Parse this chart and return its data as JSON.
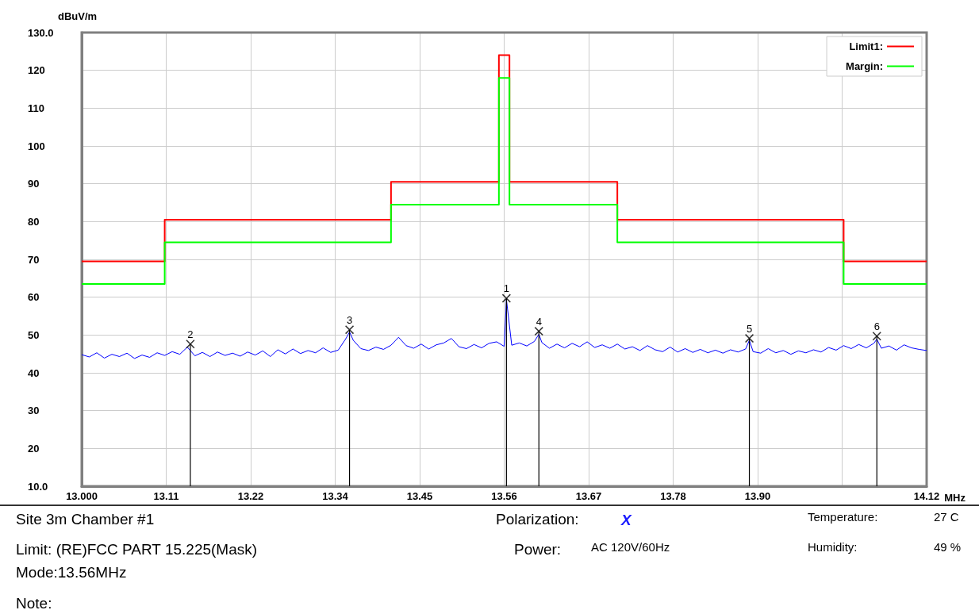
{
  "chart_data": {
    "type": "line",
    "xlabel": "MHz",
    "ylabel": "dBuV/m",
    "xlim": [
      13.0,
      14.12
    ],
    "xticks": [
      {
        "value": 13.0,
        "label": "13.000"
      },
      {
        "value": 13.112,
        "label": "13.11"
      },
      {
        "value": 13.224,
        "label": "13.22"
      },
      {
        "value": 13.336,
        "label": "13.34"
      },
      {
        "value": 13.448,
        "label": "13.45"
      },
      {
        "value": 13.56,
        "label": "13.56"
      },
      {
        "value": 13.672,
        "label": "13.67"
      },
      {
        "value": 13.784,
        "label": "13.78"
      },
      {
        "value": 13.896,
        "label": "13.90"
      },
      {
        "value": 14.008,
        "label": null
      },
      {
        "value": 14.12,
        "label": "14.12"
      }
    ],
    "ylim": [
      10,
      130
    ],
    "yticks": [
      {
        "value": 10,
        "label": "10.0"
      },
      20,
      30,
      40,
      50,
      60,
      70,
      80,
      90,
      100,
      110,
      120,
      {
        "value": 130,
        "label": "130.0"
      }
    ],
    "grid": true,
    "legend": "top right",
    "series": [
      {
        "name": "Limit1:",
        "type": "step",
        "color": "#ff0000",
        "x": [
          13.0,
          13.11,
          13.41,
          13.553,
          13.567,
          13.71,
          14.01,
          14.12
        ],
        "values": [
          69.5,
          80.5,
          90.5,
          124,
          90.5,
          80.5,
          69.5,
          69.5
        ]
      },
      {
        "name": "Margin:",
        "type": "step",
        "color": "#00ff00",
        "x": [
          13.0,
          13.11,
          13.41,
          13.553,
          13.567,
          13.71,
          14.01,
          14.12
        ],
        "values": [
          63.5,
          74.5,
          84.5,
          118,
          84.5,
          74.5,
          63.5,
          63.5
        ]
      },
      {
        "color": "#0000ff",
        "marker": "none",
        "x": [
          13.0,
          13.01,
          13.02,
          13.03,
          13.04,
          13.05,
          13.06,
          13.07,
          13.08,
          13.09,
          13.1,
          13.11,
          13.12,
          13.13,
          13.14,
          13.15,
          13.16,
          13.17,
          13.18,
          13.19,
          13.2,
          13.21,
          13.22,
          13.23,
          13.24,
          13.25,
          13.26,
          13.27,
          13.28,
          13.29,
          13.3,
          13.31,
          13.32,
          13.33,
          13.34,
          13.35,
          13.355,
          13.36,
          13.37,
          13.38,
          13.39,
          13.4,
          13.41,
          13.42,
          13.43,
          13.44,
          13.45,
          13.46,
          13.47,
          13.48,
          13.49,
          13.5,
          13.51,
          13.52,
          13.53,
          13.54,
          13.55,
          13.56,
          13.563,
          13.57,
          13.58,
          13.59,
          13.6,
          13.606,
          13.61,
          13.62,
          13.63,
          13.64,
          13.65,
          13.66,
          13.67,
          13.68,
          13.69,
          13.7,
          13.71,
          13.72,
          13.73,
          13.74,
          13.75,
          13.76,
          13.77,
          13.78,
          13.79,
          13.8,
          13.81,
          13.82,
          13.83,
          13.84,
          13.85,
          13.86,
          13.87,
          13.88,
          13.885,
          13.89,
          13.9,
          13.91,
          13.92,
          13.93,
          13.94,
          13.95,
          13.96,
          13.97,
          13.98,
          13.99,
          14.0,
          14.01,
          14.02,
          14.03,
          14.04,
          14.05,
          14.054,
          14.06,
          14.07,
          14.08,
          14.09,
          14.1,
          14.11,
          14.12
        ],
        "values": [
          44.8,
          44.2,
          45.3,
          43.9,
          44.9,
          44.3,
          45.2,
          43.8,
          44.7,
          44.1,
          45.3,
          44.6,
          45.6,
          44.9,
          46.8,
          44.5,
          45.4,
          44.3,
          45.5,
          44.6,
          45.2,
          44.4,
          45.5,
          44.7,
          45.8,
          44.3,
          46.1,
          45.0,
          46.3,
          45.1,
          45.9,
          45.3,
          46.6,
          45.4,
          46.0,
          49.0,
          50.8,
          48.6,
          46.4,
          45.9,
          46.8,
          46.2,
          47.3,
          49.4,
          47.2,
          46.5,
          47.6,
          46.3,
          47.4,
          47.9,
          49.1,
          46.9,
          46.4,
          47.5,
          46.6,
          47.8,
          48.2,
          47.0,
          59.4,
          47.3,
          47.9,
          47.1,
          48.3,
          50.2,
          48.0,
          46.5,
          47.6,
          46.6,
          47.8,
          46.9,
          48.2,
          46.7,
          47.4,
          46.5,
          47.6,
          46.3,
          46.9,
          45.9,
          47.2,
          46.1,
          45.6,
          46.8,
          45.5,
          46.4,
          45.4,
          46.2,
          45.3,
          46.0,
          45.2,
          46.1,
          45.5,
          46.3,
          48.6,
          45.6,
          45.2,
          46.4,
          45.3,
          45.9,
          44.9,
          45.8,
          45.3,
          46.1,
          45.5,
          46.7,
          46.0,
          47.2,
          46.4,
          47.5,
          46.6,
          47.8,
          48.9,
          46.5,
          47.1,
          46.0,
          47.4,
          46.6,
          46.2,
          45.9
        ]
      },
      {
        "type": "lollipop",
        "color": "#000000",
        "marker": "cross",
        "x": [
          13.144,
          13.355,
          13.563,
          13.606,
          13.885,
          14.054
        ],
        "values": [
          47.6,
          51.4,
          59.7,
          51.0,
          49.1,
          49.7
        ]
      }
    ],
    "annotations": [
      {
        "text": "2",
        "x": 13.144,
        "y": 47.6
      },
      {
        "text": "3",
        "x": 13.355,
        "y": 51.4
      },
      {
        "text": "1",
        "x": 13.563,
        "y": 59.7
      },
      {
        "text": "4",
        "x": 13.606,
        "y": 51.0
      },
      {
        "text": "5",
        "x": 13.885,
        "y": 49.1
      },
      {
        "text": "6",
        "x": 14.054,
        "y": 49.7
      },
      "Site  3m Chamber #1",
      "Polarization:",
      "X",
      "Temperature:",
      "27 C",
      "Limit: (RE)FCC PART 15.225(Mask)",
      "Power:",
      "AC 120V/60Hz",
      "Humidity:",
      "49 %",
      "Mode:13.56MHz",
      "Note:"
    ]
  }
}
